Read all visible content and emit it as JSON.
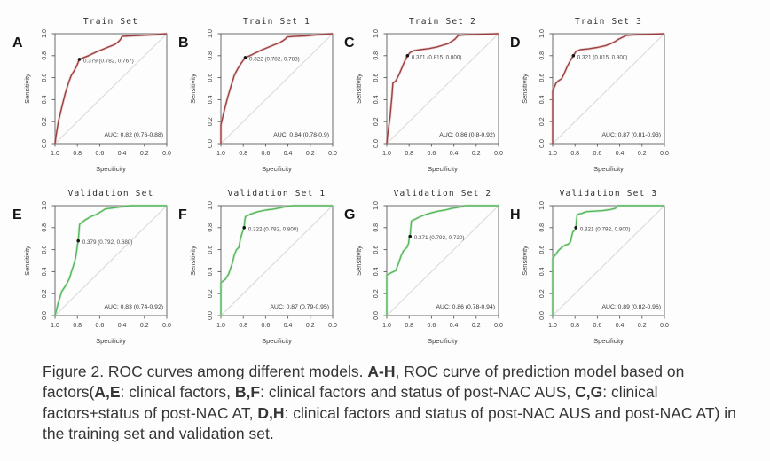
{
  "figure": {
    "background": "#fdfdfd",
    "colors": {
      "train_curve": "#9b4040",
      "train_halo": "#dba3a3",
      "validation_curve": "#56b65c",
      "validation_halo": "#abdfad",
      "diagonal": "#dadada",
      "marker": "#141414"
    }
  },
  "chart_data": [
    {
      "type": "line",
      "panel": "A",
      "title": "Train Set",
      "xlabel": "Specificity",
      "ylabel": "Sensitivity",
      "x_ticks": [
        "1.0",
        "0.8",
        "0.6",
        "0.4",
        "0.2",
        "0.0"
      ],
      "y_ticks": [
        "0.0",
        "0.2",
        "0.4",
        "0.6",
        "0.8",
        "1.0"
      ],
      "x_axis_reversed": true,
      "xlim": [
        1.0,
        0.0
      ],
      "ylim": [
        0.0,
        1.0
      ],
      "curve_color": "#9b4040",
      "halo_color": "#dba3a3",
      "auc_label": "AUC: 0.82 (0.76-0.88)",
      "threshold_label": "0.379 (0.782, 0.767)",
      "marked_point": {
        "specificity": 0.782,
        "sensitivity": 0.767
      },
      "roc_points": [
        [
          1,
          0
        ],
        [
          0.99,
          0.08
        ],
        [
          0.97,
          0.2
        ],
        [
          0.94,
          0.33
        ],
        [
          0.91,
          0.45
        ],
        [
          0.88,
          0.55
        ],
        [
          0.855,
          0.62
        ],
        [
          0.83,
          0.66
        ],
        [
          0.805,
          0.71
        ],
        [
          0.782,
          0.767
        ],
        [
          0.75,
          0.78
        ],
        [
          0.7,
          0.8
        ],
        [
          0.64,
          0.83
        ],
        [
          0.58,
          0.855
        ],
        [
          0.52,
          0.88
        ],
        [
          0.47,
          0.9
        ],
        [
          0.44,
          0.92
        ],
        [
          0.42,
          0.94
        ],
        [
          0.41,
          0.955
        ],
        [
          0.4,
          0.975
        ],
        [
          0.33,
          0.98
        ],
        [
          0.22,
          0.985
        ],
        [
          0.1,
          0.99
        ],
        [
          0,
          1
        ]
      ]
    },
    {
      "type": "line",
      "panel": "B",
      "title": "Train Set 1",
      "xlabel": "Specificity",
      "ylabel": "Sensitivity",
      "x_ticks": [
        "1.0",
        "0.8",
        "0.6",
        "0.4",
        "0.2",
        "0.0"
      ],
      "y_ticks": [
        "0.0",
        "0.2",
        "0.4",
        "0.6",
        "0.8",
        "1.0"
      ],
      "x_axis_reversed": true,
      "xlim": [
        1.0,
        0.0
      ],
      "ylim": [
        0.0,
        1.0
      ],
      "curve_color": "#9b4040",
      "halo_color": "#dba3a3",
      "auc_label": "AUC: 0.84 (0.78-0.9)",
      "threshold_label": "0.322 (0.782, 0.783)",
      "marked_point": {
        "specificity": 0.782,
        "sensitivity": 0.783
      },
      "roc_points": [
        [
          1,
          0
        ],
        [
          1,
          0.17
        ],
        [
          0.97,
          0.3
        ],
        [
          0.94,
          0.42
        ],
        [
          0.91,
          0.52
        ],
        [
          0.88,
          0.62
        ],
        [
          0.85,
          0.68
        ],
        [
          0.82,
          0.73
        ],
        [
          0.782,
          0.783
        ],
        [
          0.74,
          0.8
        ],
        [
          0.7,
          0.82
        ],
        [
          0.64,
          0.85
        ],
        [
          0.58,
          0.875
        ],
        [
          0.52,
          0.9
        ],
        [
          0.47,
          0.92
        ],
        [
          0.44,
          0.94
        ],
        [
          0.42,
          0.955
        ],
        [
          0.41,
          0.97
        ],
        [
          0.35,
          0.975
        ],
        [
          0.25,
          0.98
        ],
        [
          0.12,
          0.99
        ],
        [
          0,
          1
        ]
      ]
    },
    {
      "type": "line",
      "panel": "C",
      "title": "Train Set 2",
      "xlabel": "Specificity",
      "ylabel": "Sensitivity",
      "x_ticks": [
        "1.0",
        "0.8",
        "0.6",
        "0.4",
        "0.2",
        "0.0"
      ],
      "y_ticks": [
        "0.0",
        "0.2",
        "0.4",
        "0.6",
        "0.8",
        "1.0"
      ],
      "x_axis_reversed": true,
      "xlim": [
        1.0,
        0.0
      ],
      "ylim": [
        0.0,
        1.0
      ],
      "curve_color": "#9b4040",
      "halo_color": "#dba3a3",
      "auc_label": "AUC: 0.86 (0.8-0.92)",
      "threshold_label": "0.371 (0.815, 0.800)",
      "marked_point": {
        "specificity": 0.815,
        "sensitivity": 0.8
      },
      "roc_points": [
        [
          1,
          0
        ],
        [
          0.99,
          0.1
        ],
        [
          0.97,
          0.25
        ],
        [
          0.955,
          0.42
        ],
        [
          0.945,
          0.55
        ],
        [
          0.92,
          0.57
        ],
        [
          0.89,
          0.63
        ],
        [
          0.86,
          0.7
        ],
        [
          0.84,
          0.75
        ],
        [
          0.815,
          0.8
        ],
        [
          0.79,
          0.83
        ],
        [
          0.76,
          0.845
        ],
        [
          0.7,
          0.855
        ],
        [
          0.62,
          0.865
        ],
        [
          0.55,
          0.88
        ],
        [
          0.5,
          0.895
        ],
        [
          0.45,
          0.91
        ],
        [
          0.42,
          0.93
        ],
        [
          0.39,
          0.95
        ],
        [
          0.36,
          0.985
        ],
        [
          0.28,
          0.99
        ],
        [
          0.12,
          0.995
        ],
        [
          0,
          1
        ]
      ]
    },
    {
      "type": "line",
      "panel": "D",
      "title": "Train Set 3",
      "xlabel": "Specificity",
      "ylabel": "Sensitivity",
      "x_ticks": [
        "1.0",
        "0.8",
        "0.6",
        "0.4",
        "0.2",
        "0.0"
      ],
      "y_ticks": [
        "0.0",
        "0.2",
        "0.4",
        "0.6",
        "0.8",
        "1.0"
      ],
      "x_axis_reversed": true,
      "xlim": [
        1.0,
        0.0
      ],
      "ylim": [
        0.0,
        1.0
      ],
      "curve_color": "#9b4040",
      "halo_color": "#dba3a3",
      "auc_label": "AUC: 0.87 (0.81-0.93)",
      "threshold_label": "0.321 (0.815, 0.800)",
      "marked_point": {
        "specificity": 0.815,
        "sensitivity": 0.8
      },
      "roc_points": [
        [
          1,
          0
        ],
        [
          1,
          0.48
        ],
        [
          0.97,
          0.55
        ],
        [
          0.95,
          0.57
        ],
        [
          0.92,
          0.59
        ],
        [
          0.9,
          0.63
        ],
        [
          0.87,
          0.7
        ],
        [
          0.84,
          0.76
        ],
        [
          0.815,
          0.8
        ],
        [
          0.79,
          0.84
        ],
        [
          0.75,
          0.855
        ],
        [
          0.68,
          0.862
        ],
        [
          0.6,
          0.875
        ],
        [
          0.53,
          0.89
        ],
        [
          0.48,
          0.91
        ],
        [
          0.44,
          0.93
        ],
        [
          0.41,
          0.95
        ],
        [
          0.37,
          0.97
        ],
        [
          0.34,
          0.985
        ],
        [
          0.25,
          0.99
        ],
        [
          0.1,
          0.995
        ],
        [
          0,
          1
        ]
      ]
    },
    {
      "type": "line",
      "panel": "E",
      "title": "Validation Set",
      "xlabel": "Specificity",
      "ylabel": "Sensitivity",
      "x_ticks": [
        "1.0",
        "0.8",
        "0.6",
        "0.4",
        "0.2",
        "0.0"
      ],
      "y_ticks": [
        "0.0",
        "0.2",
        "0.4",
        "0.6",
        "0.8",
        "1.0"
      ],
      "x_axis_reversed": true,
      "xlim": [
        1.0,
        0.0
      ],
      "ylim": [
        0.0,
        1.0
      ],
      "curve_color": "#56b65c",
      "halo_color": "#abdfad",
      "auc_label": "AUC: 0.83 (0.74-0.92)",
      "threshold_label": "0.379 (0.792, 0.680)",
      "marked_point": {
        "specificity": 0.792,
        "sensitivity": 0.68
      },
      "roc_points": [
        [
          1,
          0
        ],
        [
          0.97,
          0.12
        ],
        [
          0.94,
          0.22
        ],
        [
          0.9,
          0.28
        ],
        [
          0.87,
          0.34
        ],
        [
          0.85,
          0.41
        ],
        [
          0.83,
          0.47
        ],
        [
          0.815,
          0.53
        ],
        [
          0.805,
          0.6
        ],
        [
          0.8,
          0.64
        ],
        [
          0.792,
          0.68
        ],
        [
          0.786,
          0.76
        ],
        [
          0.78,
          0.83
        ],
        [
          0.73,
          0.87
        ],
        [
          0.68,
          0.9
        ],
        [
          0.63,
          0.92
        ],
        [
          0.58,
          0.95
        ],
        [
          0.55,
          0.97
        ],
        [
          0.48,
          0.98
        ],
        [
          0.4,
          0.99
        ],
        [
          0.33,
          1
        ],
        [
          0,
          1
        ]
      ]
    },
    {
      "type": "line",
      "panel": "F",
      "title": "Validation Set 1",
      "xlabel": "Specificity",
      "ylabel": "Sensitivity",
      "x_ticks": [
        "1.0",
        "0.8",
        "0.6",
        "0.4",
        "0.2",
        "0.0"
      ],
      "y_ticks": [
        "0.0",
        "0.2",
        "0.4",
        "0.6",
        "0.8",
        "1.0"
      ],
      "x_axis_reversed": true,
      "xlim": [
        1.0,
        0.0
      ],
      "ylim": [
        0.0,
        1.0
      ],
      "curve_color": "#56b65c",
      "halo_color": "#abdfad",
      "auc_label": "AUC: 0.87 (0.79-0.95)",
      "threshold_label": "0.322 (0.792, 0.800)",
      "marked_point": {
        "specificity": 0.792,
        "sensitivity": 0.8
      },
      "roc_points": [
        [
          1,
          0
        ],
        [
          1,
          0.3
        ],
        [
          0.96,
          0.33
        ],
        [
          0.93,
          0.38
        ],
        [
          0.9,
          0.47
        ],
        [
          0.88,
          0.55
        ],
        [
          0.86,
          0.6
        ],
        [
          0.84,
          0.62
        ],
        [
          0.825,
          0.7
        ],
        [
          0.81,
          0.75
        ],
        [
          0.8,
          0.78
        ],
        [
          0.792,
          0.8
        ],
        [
          0.786,
          0.87
        ],
        [
          0.78,
          0.9
        ],
        [
          0.73,
          0.925
        ],
        [
          0.67,
          0.945
        ],
        [
          0.6,
          0.96
        ],
        [
          0.52,
          0.97
        ],
        [
          0.45,
          0.985
        ],
        [
          0.4,
          0.995
        ],
        [
          0.35,
          1
        ],
        [
          0,
          1
        ]
      ]
    },
    {
      "type": "line",
      "panel": "G",
      "title": "Validation Set 2",
      "xlabel": "Specificity",
      "ylabel": "Sensitivity",
      "x_ticks": [
        "1.0",
        "0.8",
        "0.6",
        "0.4",
        "0.2",
        "0.0"
      ],
      "y_ticks": [
        "0.0",
        "0.2",
        "0.4",
        "0.6",
        "0.8",
        "1.0"
      ],
      "x_axis_reversed": true,
      "xlim": [
        1.0,
        0.0
      ],
      "ylim": [
        0.0,
        1.0
      ],
      "curve_color": "#56b65c",
      "halo_color": "#abdfad",
      "auc_label": "AUC: 0.86 (0.78-0.94)",
      "threshold_label": "0.371 (0.792, 0.720)",
      "marked_point": {
        "specificity": 0.792,
        "sensitivity": 0.72
      },
      "roc_points": [
        [
          1,
          0
        ],
        [
          1,
          0.37
        ],
        [
          0.96,
          0.39
        ],
        [
          0.92,
          0.41
        ],
        [
          0.89,
          0.49
        ],
        [
          0.87,
          0.55
        ],
        [
          0.85,
          0.59
        ],
        [
          0.82,
          0.62
        ],
        [
          0.805,
          0.66
        ],
        [
          0.8,
          0.7
        ],
        [
          0.792,
          0.72
        ],
        [
          0.786,
          0.8
        ],
        [
          0.78,
          0.86
        ],
        [
          0.75,
          0.875
        ],
        [
          0.7,
          0.9
        ],
        [
          0.65,
          0.92
        ],
        [
          0.6,
          0.935
        ],
        [
          0.54,
          0.95
        ],
        [
          0.48,
          0.96
        ],
        [
          0.42,
          0.975
        ],
        [
          0.36,
          0.985
        ],
        [
          0.3,
          1
        ],
        [
          0,
          1
        ]
      ]
    },
    {
      "type": "line",
      "panel": "H",
      "title": "Validation Set 3",
      "xlabel": "Specificity",
      "ylabel": "Sensitivity",
      "x_ticks": [
        "1.0",
        "0.8",
        "0.6",
        "0.4",
        "0.2",
        "0.0"
      ],
      "y_ticks": [
        "0.0",
        "0.2",
        "0.4",
        "0.6",
        "0.8",
        "1.0"
      ],
      "x_axis_reversed": true,
      "xlim": [
        1.0,
        0.0
      ],
      "ylim": [
        0.0,
        1.0
      ],
      "curve_color": "#56b65c",
      "halo_color": "#abdfad",
      "auc_label": "AUC: 0.89 (0.82-0.96)",
      "threshold_label": "0.321 (0.792, 0.800)",
      "marked_point": {
        "specificity": 0.792,
        "sensitivity": 0.8
      },
      "roc_points": [
        [
          1,
          0
        ],
        [
          1,
          0.52
        ],
        [
          0.97,
          0.56
        ],
        [
          0.95,
          0.59
        ],
        [
          0.92,
          0.62
        ],
        [
          0.89,
          0.64
        ],
        [
          0.86,
          0.65
        ],
        [
          0.84,
          0.67
        ],
        [
          0.83,
          0.72
        ],
        [
          0.82,
          0.76
        ],
        [
          0.8,
          0.78
        ],
        [
          0.792,
          0.8
        ],
        [
          0.786,
          0.88
        ],
        [
          0.78,
          0.92
        ],
        [
          0.74,
          0.93
        ],
        [
          0.7,
          0.945
        ],
        [
          0.63,
          0.95
        ],
        [
          0.55,
          0.955
        ],
        [
          0.48,
          0.965
        ],
        [
          0.44,
          0.975
        ],
        [
          0.42,
          1
        ],
        [
          0,
          1
        ]
      ]
    }
  ],
  "caption": {
    "segments": [
      {
        "text": "Figure 2. ROC curves among different models. ",
        "bold": false
      },
      {
        "text": "A-H",
        "bold": true
      },
      {
        "text": ", ROC curve of prediction model based on factors(",
        "bold": false
      },
      {
        "text": "A,E",
        "bold": true
      },
      {
        "text": ": clinical factors, ",
        "bold": false
      },
      {
        "text": "B,F",
        "bold": true
      },
      {
        "text": ": clinical factors and status of post-NAC AUS, ",
        "bold": false
      },
      {
        "text": "C,G",
        "bold": true
      },
      {
        "text": ": clinical factors+status of post-NAC AT, ",
        "bold": false
      },
      {
        "text": "D,H",
        "bold": true
      },
      {
        "text": ": clinical factors and status of post-NAC AUS and post-NAC AT) in the training set and validation set.",
        "bold": false
      }
    ]
  }
}
